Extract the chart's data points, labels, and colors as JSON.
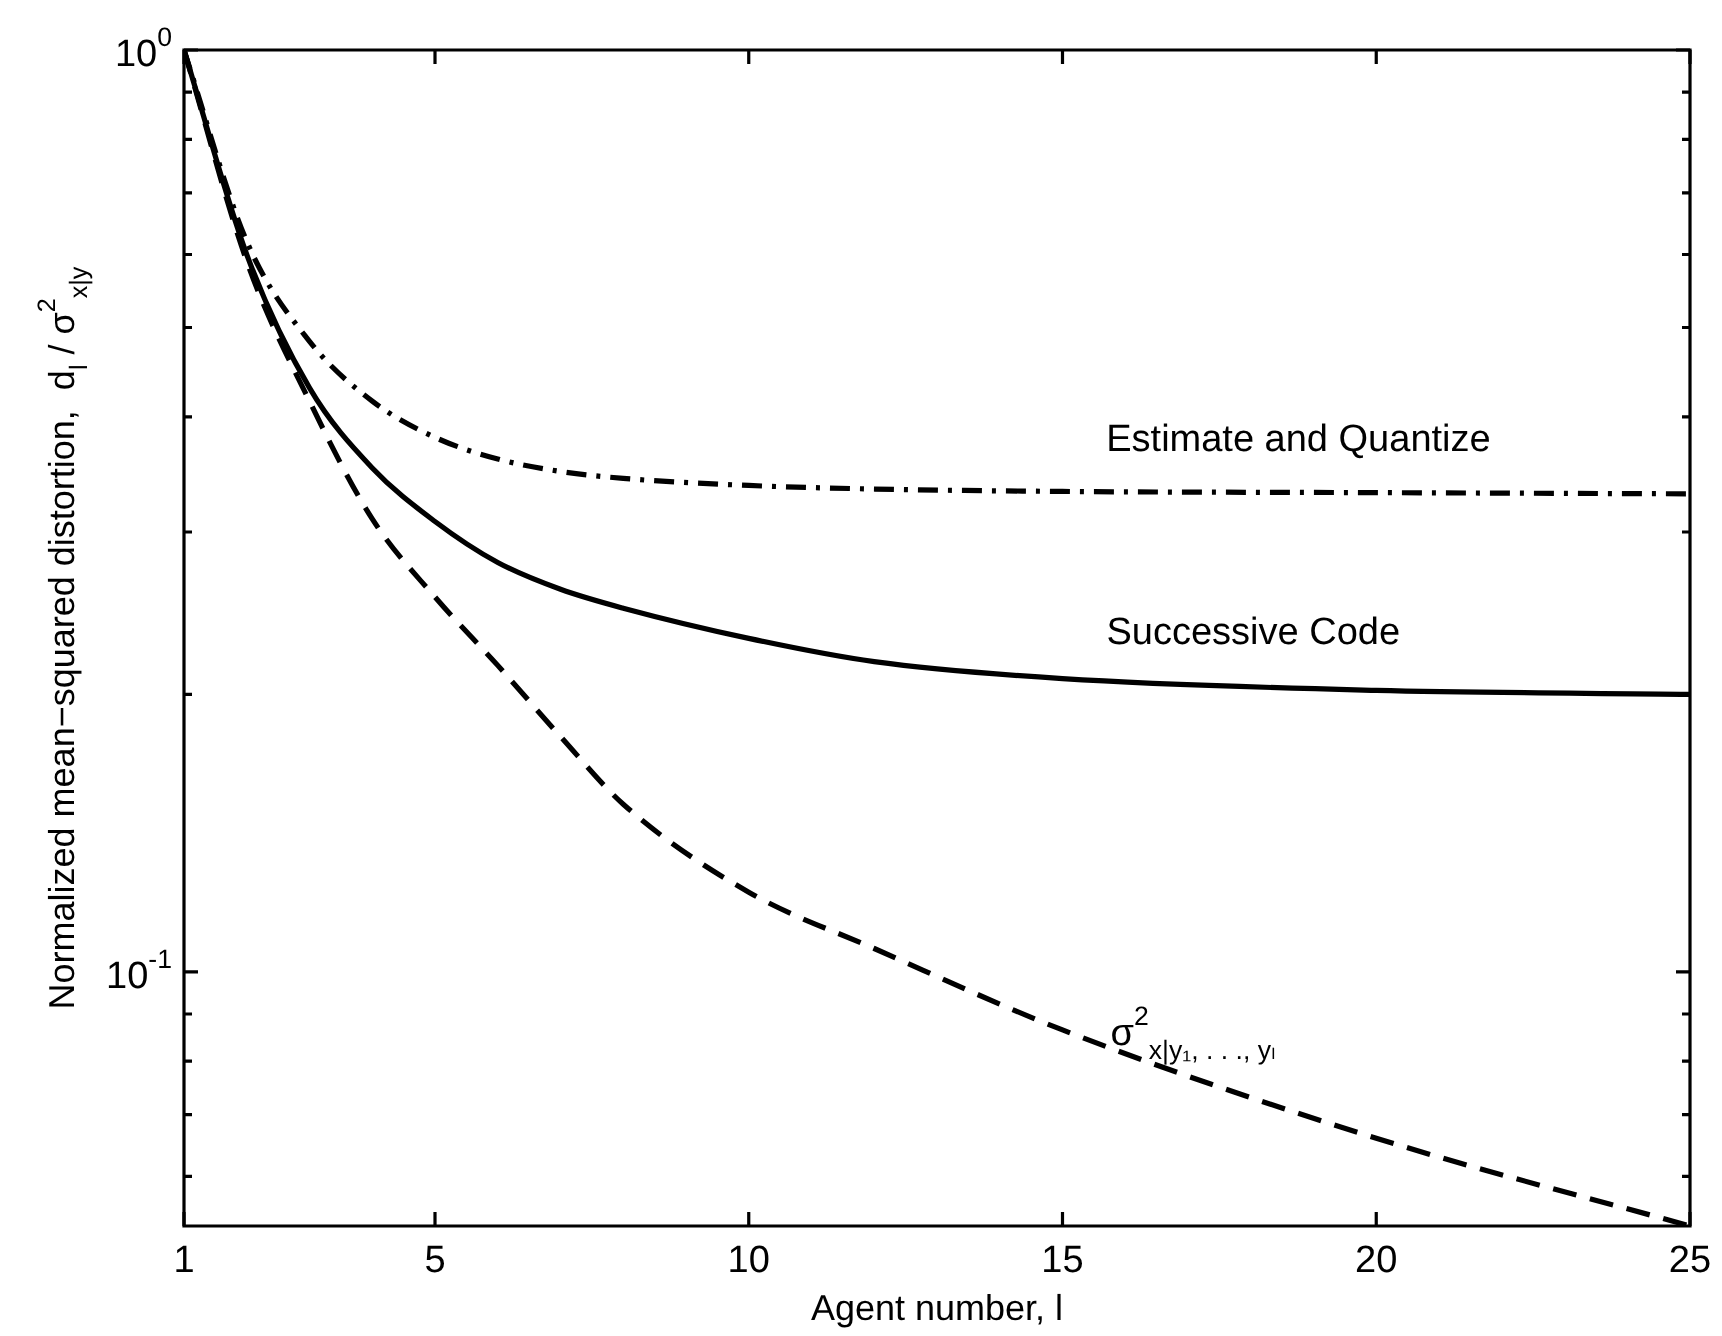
{
  "chart_data": {
    "type": "line",
    "xlabel": "Agent number, l",
    "ylabel": "Normalized mean−squared distortion,  d$_{l}$ / σ$^{2}$$_{x|y}$",
    "x": [
      1,
      2,
      3,
      4,
      5,
      6,
      7,
      8,
      10,
      12,
      15,
      20,
      25
    ],
    "series": [
      {
        "name": "Estimate and Quantize",
        "color": "#000000",
        "line_style": "dashdot",
        "values": [
          1,
          0.62,
          0.483,
          0.416,
          0.38,
          0.36,
          0.349,
          0.343,
          0.337,
          0.334,
          0.332,
          0.331,
          0.33
        ]
      },
      {
        "name": "Successive Code",
        "color": "#000000",
        "line_style": "solid",
        "values": [
          1,
          0.6,
          0.43,
          0.352,
          0.308,
          0.278,
          0.26,
          0.248,
          0.23,
          0.217,
          0.208,
          0.202,
          0.2
        ]
      },
      {
        "name": "σ$^{2}$$_{x|y₁, . . ., yₗ}$",
        "color": "#000000",
        "line_style": "dashed",
        "values": [
          1,
          0.59,
          0.416,
          0.31,
          0.255,
          0.215,
          0.18,
          0.152,
          0.122,
          0.106,
          0.0865,
          0.066,
          0.053
        ]
      }
    ],
    "xlim": [
      1,
      25
    ],
    "xticks": [
      1,
      5,
      10,
      15,
      20,
      25
    ],
    "ylim": [
      0.053,
      1
    ],
    "yticks": [
      {
        "value": 1,
        "label": "10$^{0}$"
      },
      {
        "value": 0.9,
        "label": null
      },
      {
        "value": 0.8,
        "label": null
      },
      {
        "value": 0.7,
        "label": null
      },
      {
        "value": 0.6,
        "label": null
      },
      {
        "value": 0.5,
        "label": null
      },
      {
        "value": 0.4,
        "label": null
      },
      {
        "value": 0.3,
        "label": null
      },
      {
        "value": 0.2,
        "label": null
      },
      {
        "value": 0.1,
        "label": "10$^{-1}$"
      },
      {
        "value": 0.09,
        "label": null
      },
      {
        "value": 0.08,
        "label": null
      },
      {
        "value": 0.07,
        "label": null
      },
      {
        "value": 0.06,
        "label": null
      }
    ],
    "log": true,
    "grid": false,
    "legend": false,
    "marker": "none"
  }
}
